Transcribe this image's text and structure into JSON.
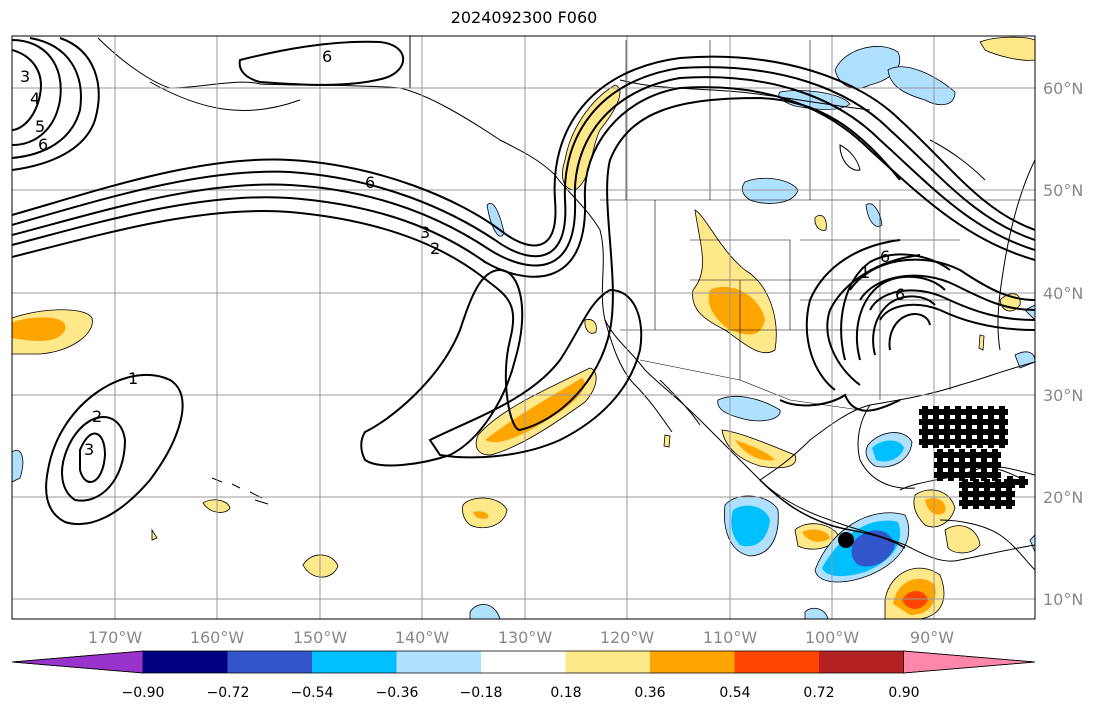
{
  "title": "2024092300 F060",
  "longitude_labels": [
    "170°W",
    "160°W",
    "150°W",
    "140°W",
    "130°W",
    "120°W",
    "110°W",
    "100°W",
    "90°W"
  ],
  "latitude_labels": [
    "60°N",
    "50°N",
    "40°N",
    "30°N",
    "20°N",
    "10°N"
  ],
  "colorbar": {
    "tick_labels": [
      "−0.90",
      "−0.72",
      "−0.54",
      "−0.36",
      "−0.18",
      "0.18",
      "0.36",
      "0.54",
      "0.72",
      "0.90"
    ],
    "colors": [
      "#9933cc",
      "#000080",
      "#3355cc",
      "#00bfff",
      "#b0e0ff",
      "#ffffff",
      "#ffe88a",
      "#ffa500",
      "#ff4500",
      "#b22222",
      "#ff88aa"
    ]
  },
  "contour_labels": [
    "6",
    "6",
    "3",
    "4",
    "5",
    "6",
    "3",
    "2",
    "1",
    "3",
    "2",
    "1",
    "6",
    "6"
  ],
  "colors": {
    "coastline": "#000000",
    "grid": "#999999",
    "contour": "#000000"
  }
}
